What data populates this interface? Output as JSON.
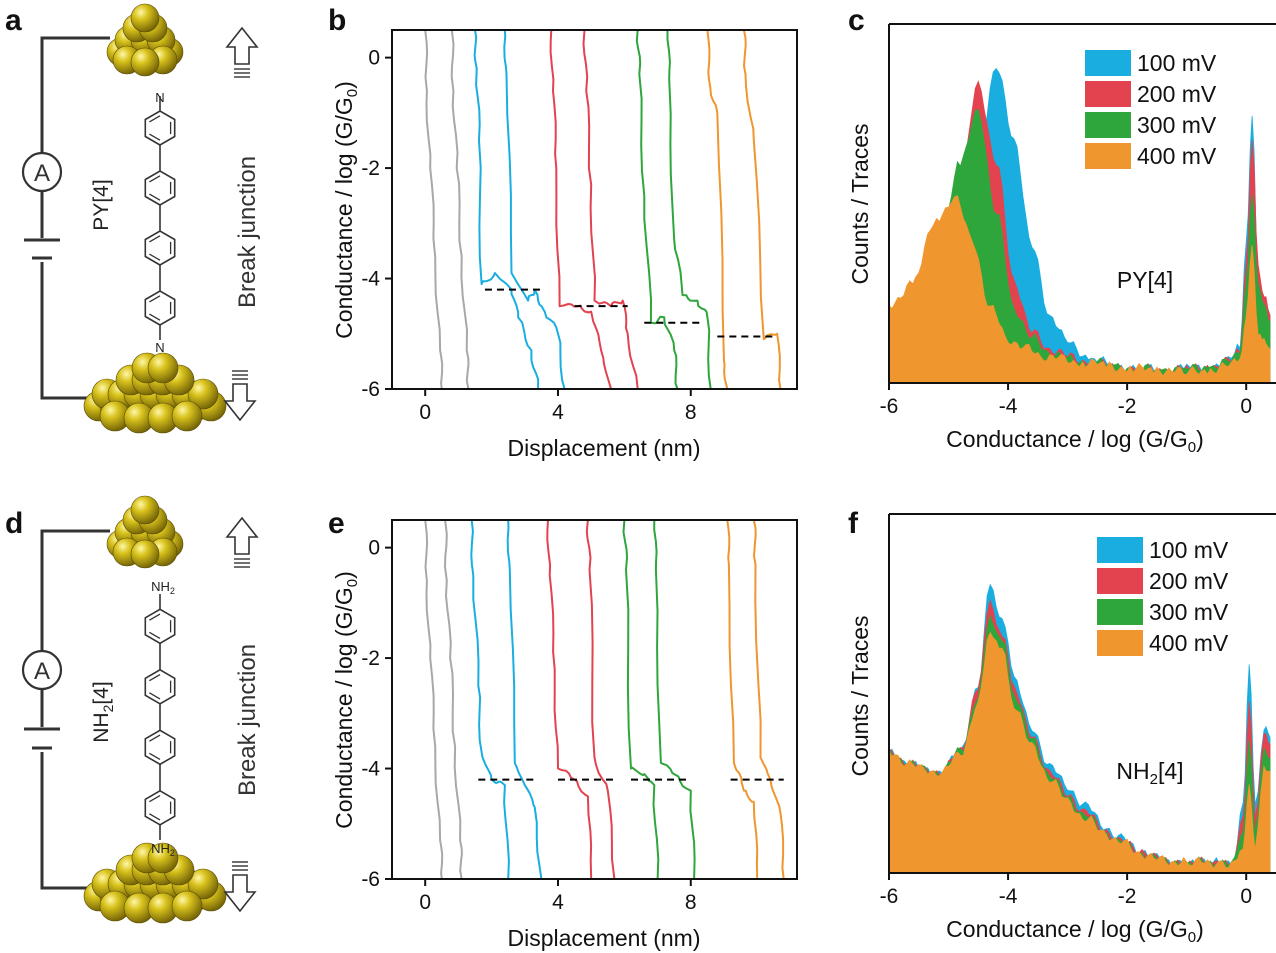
{
  "panel_labels": {
    "a": "a",
    "b": "b",
    "c": "c",
    "d": "d",
    "e": "e",
    "f": "f"
  },
  "schematic": {
    "ammeter": "A",
    "break_junction": "Break junction",
    "molecule_top": {
      "base": "PY[4]",
      "atom_bottom": "N",
      "atom_top": "N"
    },
    "molecule_bottom": {
      "base": "NH",
      "sub": "2",
      "suffix": "[4]",
      "group": "NH",
      "group_sub": "2"
    }
  },
  "colors": {
    "100mV": "#1aaee0",
    "200mV": "#e2434f",
    "300mV": "#2ea63c",
    "400mV": "#f0962e",
    "gray": "#a8a8a8",
    "gold": "#c9b417"
  },
  "axes_text": {
    "ylabel_traces": "Conductance / log (G/G",
    "ylabel_sub": "0",
    "ylabel_close": ")",
    "xlabel_traces": "Displacement (nm)",
    "ylabel_hist": "Counts / Traces",
    "xlabel_hist": "Conductance / log (G/G",
    "xlabel_hist_sub": "0",
    "xlabel_hist_close": ")"
  },
  "legend": [
    "100 mV",
    "200 mV",
    "300 mV",
    "400 mV"
  ],
  "hist_annotations": {
    "c": "PY[4]",
    "f_base": "NH",
    "f_sub": "2",
    "f_suffix": "[4]"
  },
  "chart_data": [
    {
      "panel": "b",
      "type": "line",
      "xlabel": "Displacement (nm)",
      "ylabel": "Conductance / log (G/G0)",
      "xlim": [
        -1,
        11.2
      ],
      "ylim": [
        -6,
        0.5
      ],
      "xticks": [
        0,
        4,
        8
      ],
      "yticks": [
        0,
        -2,
        -4,
        -6
      ],
      "series": [
        {
          "color": "gray",
          "x": [
            0,
            0.05,
            0.15,
            0.3,
            0.45,
            0.5
          ],
          "y": [
            0.5,
            -0.6,
            -2.0,
            -3.6,
            -5.3,
            -6.0
          ]
        },
        {
          "color": "gray",
          "x": [
            0.8,
            0.85,
            0.95,
            1.1,
            1.25,
            1.3
          ],
          "y": [
            0.5,
            -0.6,
            -2.0,
            -3.6,
            -5.3,
            -6.0
          ]
        },
        {
          "color": "100mV",
          "x": [
            1.5,
            1.55,
            1.62,
            1.7,
            2.1,
            2.6,
            2.8,
            3.2,
            3.4
          ],
          "y": [
            0.5,
            -0.2,
            -1.5,
            -4.1,
            -3.9,
            -4.2,
            -4.7,
            -5.3,
            -6.0
          ]
        },
        {
          "color": "100mV",
          "x": [
            2.4,
            2.45,
            2.6,
            3.1,
            3.3,
            3.6,
            4.0,
            4.2
          ],
          "y": [
            0.5,
            -0.3,
            -3.9,
            -4.4,
            -4.2,
            -4.6,
            -5.0,
            -6.0
          ]
        },
        {
          "color": "200mV",
          "x": [
            3.8,
            3.85,
            3.95,
            4.05,
            4.6,
            5.0,
            5.3,
            5.6
          ],
          "y": [
            0.5,
            -0.6,
            -2.0,
            -4.5,
            -4.5,
            -4.6,
            -5.3,
            -6.0
          ]
        },
        {
          "color": "200mV",
          "x": [
            4.8,
            4.85,
            5.0,
            5.1,
            5.6,
            5.95,
            6.1,
            6.4
          ],
          "y": [
            0.5,
            -0.6,
            -2.3,
            -4.4,
            -4.5,
            -4.4,
            -5.0,
            -6.0
          ]
        },
        {
          "color": "300mV",
          "x": [
            6.4,
            6.45,
            6.6,
            6.8,
            7.2,
            7.5,
            7.6
          ],
          "y": [
            0.5,
            -0.3,
            -2.5,
            -4.8,
            -4.7,
            -5.3,
            -6.0
          ]
        },
        {
          "color": "300mV",
          "x": [
            7.3,
            7.35,
            7.5,
            7.75,
            8.2,
            8.5,
            8.6
          ],
          "y": [
            0.5,
            -0.4,
            -3.3,
            -4.3,
            -4.4,
            -4.7,
            -6.0
          ]
        },
        {
          "color": "400mV",
          "x": [
            8.5,
            8.55,
            8.8,
            9.0,
            9.1
          ],
          "y": [
            0.5,
            -0.4,
            -1.0,
            -5.5,
            -6.0
          ]
        },
        {
          "color": "400mV",
          "x": [
            9.6,
            9.65,
            9.9,
            10.2,
            10.6,
            10.7
          ],
          "y": [
            0.5,
            -0.3,
            -1.5,
            -5.1,
            -5.0,
            -6.0
          ]
        }
      ],
      "dashed_levels": [
        {
          "x": [
            1.8,
            3.5
          ],
          "y": -4.2
        },
        {
          "x": [
            4.5,
            6.1
          ],
          "y": -4.5
        },
        {
          "x": [
            6.6,
            8.3
          ],
          "y": -4.8
        },
        {
          "x": [
            8.8,
            10.6
          ],
          "y": -5.05
        }
      ]
    },
    {
      "panel": "c",
      "type": "area",
      "xlabel": "Conductance / log (G/G0)",
      "ylabel": "Counts / Traces",
      "xlim": [
        -6,
        0.4
      ],
      "ylim": [
        0,
        1
      ],
      "xticks": [
        -6,
        -4,
        -2,
        0
      ],
      "legend_position": "top-right",
      "annotation": "PY[4]",
      "series": [
        {
          "name": "100 mV",
          "color": "100mV",
          "x": [
            -6,
            -5.6,
            -5.2,
            -4.8,
            -4.5,
            -4.2,
            -3.9,
            -3.6,
            -3.3,
            -3.0,
            -2.6,
            -2.2,
            -1.8,
            -1.4,
            -1.0,
            -0.6,
            -0.3,
            -0.1,
            0.0,
            0.1,
            0.2,
            0.3,
            0.4
          ],
          "y": [
            0.18,
            0.22,
            0.3,
            0.45,
            0.68,
            0.93,
            0.72,
            0.4,
            0.2,
            0.12,
            0.07,
            0.05,
            0.04,
            0.04,
            0.04,
            0.05,
            0.06,
            0.12,
            0.4,
            0.8,
            0.3,
            0.22,
            0.2
          ]
        },
        {
          "name": "200 mV",
          "color": "200mV",
          "x": [
            -6,
            -5.6,
            -5.2,
            -4.8,
            -4.5,
            -4.2,
            -3.9,
            -3.6,
            -3.3,
            -3.0,
            -2.6,
            -2.2,
            -1.8,
            -1.4,
            -1.0,
            -0.6,
            -0.3,
            -0.1,
            0.0,
            0.1,
            0.2,
            0.3,
            0.4
          ],
          "y": [
            0.18,
            0.22,
            0.32,
            0.6,
            0.88,
            0.65,
            0.3,
            0.15,
            0.1,
            0.08,
            0.06,
            0.05,
            0.04,
            0.04,
            0.04,
            0.05,
            0.06,
            0.1,
            0.35,
            0.72,
            0.35,
            0.25,
            0.2
          ]
        },
        {
          "name": "300 mV",
          "color": "300mV",
          "x": [
            -6,
            -5.6,
            -5.2,
            -4.8,
            -4.5,
            -4.2,
            -3.9,
            -3.6,
            -3.3,
            -3.0,
            -2.6,
            -2.2,
            -1.8,
            -1.4,
            -1.0,
            -0.6,
            -0.3,
            -0.1,
            0.0,
            0.1,
            0.2,
            0.3,
            0.4
          ],
          "y": [
            0.18,
            0.22,
            0.38,
            0.65,
            0.8,
            0.5,
            0.22,
            0.13,
            0.09,
            0.07,
            0.06,
            0.05,
            0.04,
            0.04,
            0.04,
            0.05,
            0.06,
            0.09,
            0.3,
            0.55,
            0.3,
            0.22,
            0.18
          ]
        },
        {
          "name": "400 mV",
          "color": "400mV",
          "x": [
            -6,
            -5.6,
            -5.2,
            -4.9,
            -4.6,
            -4.3,
            -4.0,
            -3.7,
            -3.4,
            -3.1,
            -2.7,
            -2.3,
            -1.9,
            -1.5,
            -1.0,
            -0.6,
            -0.3,
            -0.1,
            0.0,
            0.1,
            0.2,
            0.3,
            0.4
          ],
          "y": [
            0.22,
            0.3,
            0.48,
            0.55,
            0.42,
            0.22,
            0.13,
            0.1,
            0.08,
            0.07,
            0.06,
            0.05,
            0.04,
            0.04,
            0.03,
            0.04,
            0.05,
            0.07,
            0.2,
            0.4,
            0.15,
            0.12,
            0.1
          ]
        }
      ]
    },
    {
      "panel": "e",
      "type": "line",
      "xlabel": "Displacement (nm)",
      "ylabel": "Conductance / log (G/G0)",
      "xlim": [
        -1,
        11.2
      ],
      "ylim": [
        -6,
        0.5
      ],
      "xticks": [
        0,
        4,
        8
      ],
      "yticks": [
        0,
        -2,
        -4,
        -6
      ],
      "series": [
        {
          "color": "gray",
          "x": [
            0,
            0.05,
            0.15,
            0.3,
            0.45,
            0.5
          ],
          "y": [
            0.5,
            -0.6,
            -2.0,
            -3.6,
            -5.3,
            -6.0
          ]
        },
        {
          "color": "gray",
          "x": [
            0.6,
            0.65,
            0.75,
            0.9,
            1.05,
            1.1
          ],
          "y": [
            0.5,
            -0.6,
            -2.0,
            -3.6,
            -5.3,
            -6.0
          ]
        },
        {
          "color": "100mV",
          "x": [
            1.4,
            1.45,
            1.6,
            1.7,
            2.0,
            2.4,
            2.5
          ],
          "y": [
            0.5,
            -0.5,
            -2.5,
            -3.7,
            -4.2,
            -4.3,
            -6.0
          ]
        },
        {
          "color": "100mV",
          "x": [
            2.5,
            2.55,
            2.7,
            3.0,
            3.3,
            3.5
          ],
          "y": [
            0.5,
            -0.4,
            -3.9,
            -4.3,
            -4.7,
            -6.0
          ]
        },
        {
          "color": "200mV",
          "x": [
            3.7,
            3.75,
            3.9,
            4.0,
            4.5,
            4.9,
            5.0
          ],
          "y": [
            0.5,
            -0.5,
            -2.2,
            -4.0,
            -4.2,
            -4.5,
            -6.0
          ]
        },
        {
          "color": "200mV",
          "x": [
            4.9,
            4.95,
            5.1,
            5.5,
            5.7
          ],
          "y": [
            0.5,
            -0.4,
            -3.8,
            -4.4,
            -6.0
          ]
        },
        {
          "color": "300mV",
          "x": [
            6.0,
            6.05,
            6.2,
            6.6,
            6.9,
            7.0
          ],
          "y": [
            0.5,
            -0.4,
            -4.0,
            -4.1,
            -4.3,
            -6.0
          ]
        },
        {
          "color": "300mV",
          "x": [
            6.9,
            6.95,
            7.1,
            7.5,
            8.0,
            8.1
          ],
          "y": [
            0.5,
            -0.4,
            -3.9,
            -4.1,
            -4.4,
            -6.0
          ]
        },
        {
          "color": "400mV",
          "x": [
            9.1,
            9.15,
            9.3,
            9.6,
            9.9,
            10.0
          ],
          "y": [
            0.5,
            -0.3,
            -3.9,
            -4.4,
            -4.6,
            -6.0
          ]
        },
        {
          "color": "400mV",
          "x": [
            9.9,
            9.95,
            10.1,
            10.4,
            10.7,
            10.8
          ],
          "y": [
            0.5,
            -0.3,
            -3.8,
            -4.2,
            -4.8,
            -6.0
          ]
        }
      ],
      "dashed_levels": [
        {
          "x": [
            1.6,
            3.3
          ],
          "y": -4.2
        },
        {
          "x": [
            4.0,
            5.8
          ],
          "y": -4.2
        },
        {
          "x": [
            6.2,
            8.0
          ],
          "y": -4.2
        },
        {
          "x": [
            9.2,
            10.8
          ],
          "y": -4.2
        }
      ]
    },
    {
      "panel": "f",
      "type": "area",
      "xlabel": "Conductance / log (G/G0)",
      "ylabel": "Counts / Traces",
      "xlim": [
        -6,
        0.4
      ],
      "ylim": [
        0,
        1
      ],
      "xticks": [
        -6,
        -4,
        -2,
        0
      ],
      "legend_position": "top-right",
      "annotation": "NH2[4]",
      "series": [
        {
          "name": "100 mV",
          "color": "100mV",
          "x": [
            -6,
            -5.7,
            -5.4,
            -5.1,
            -4.8,
            -4.5,
            -4.3,
            -4.1,
            -3.9,
            -3.6,
            -3.3,
            -3.0,
            -2.7,
            -2.4,
            -2.1,
            -1.8,
            -1.5,
            -1.0,
            -0.5,
            -0.2,
            -0.05,
            0.05,
            0.15,
            0.3,
            0.4
          ],
          "y": [
            0.35,
            0.33,
            0.3,
            0.3,
            0.36,
            0.55,
            0.85,
            0.75,
            0.58,
            0.42,
            0.32,
            0.25,
            0.2,
            0.14,
            0.1,
            0.07,
            0.04,
            0.03,
            0.03,
            0.04,
            0.2,
            0.62,
            0.2,
            0.42,
            0.4
          ]
        },
        {
          "name": "200 mV",
          "color": "200mV",
          "x": [
            -6,
            -5.7,
            -5.4,
            -5.1,
            -4.8,
            -4.5,
            -4.3,
            -4.1,
            -3.9,
            -3.6,
            -3.3,
            -3.0,
            -2.7,
            -2.4,
            -2.1,
            -1.8,
            -1.5,
            -1.0,
            -0.5,
            -0.2,
            -0.05,
            0.05,
            0.15,
            0.3,
            0.4
          ],
          "y": [
            0.35,
            0.33,
            0.3,
            0.3,
            0.36,
            0.55,
            0.8,
            0.7,
            0.55,
            0.4,
            0.3,
            0.23,
            0.18,
            0.13,
            0.09,
            0.07,
            0.04,
            0.03,
            0.03,
            0.04,
            0.17,
            0.5,
            0.17,
            0.4,
            0.38
          ]
        },
        {
          "name": "300 mV",
          "color": "300mV",
          "x": [
            -6,
            -5.7,
            -5.4,
            -5.1,
            -4.8,
            -4.5,
            -4.3,
            -4.1,
            -3.9,
            -3.6,
            -3.3,
            -3.0,
            -2.7,
            -2.4,
            -2.1,
            -1.8,
            -1.5,
            -1.0,
            -0.5,
            -0.2,
            -0.05,
            0.05,
            0.15,
            0.3,
            0.4
          ],
          "y": [
            0.35,
            0.33,
            0.3,
            0.3,
            0.36,
            0.52,
            0.76,
            0.68,
            0.53,
            0.39,
            0.29,
            0.22,
            0.17,
            0.12,
            0.09,
            0.06,
            0.04,
            0.03,
            0.03,
            0.04,
            0.13,
            0.38,
            0.13,
            0.35,
            0.34
          ]
        },
        {
          "name": "400 mV",
          "color": "400mV",
          "x": [
            -6,
            -5.7,
            -5.4,
            -5.1,
            -4.8,
            -4.5,
            -4.3,
            -4.1,
            -3.9,
            -3.6,
            -3.3,
            -3.0,
            -2.7,
            -2.4,
            -2.1,
            -1.8,
            -1.5,
            -1.0,
            -0.5,
            -0.2,
            -0.05,
            0.05,
            0.15,
            0.3,
            0.4
          ],
          "y": [
            0.35,
            0.33,
            0.3,
            0.3,
            0.35,
            0.5,
            0.72,
            0.65,
            0.5,
            0.37,
            0.28,
            0.21,
            0.16,
            0.12,
            0.09,
            0.06,
            0.04,
            0.03,
            0.03,
            0.03,
            0.08,
            0.25,
            0.08,
            0.3,
            0.3
          ]
        }
      ]
    }
  ]
}
